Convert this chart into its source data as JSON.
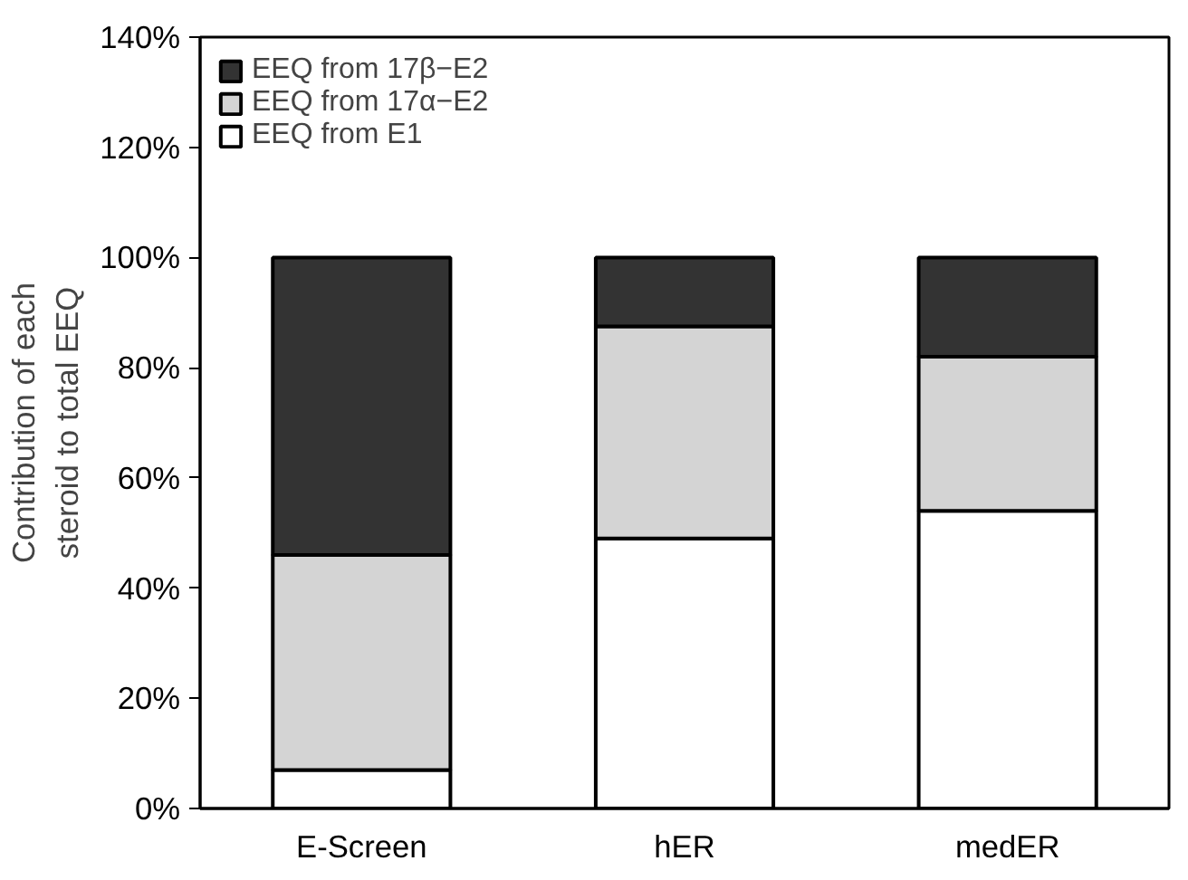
{
  "chart_data": {
    "type": "bar",
    "stacked": true,
    "ylabel": "Contribution of each\nsteroid to total EEQ",
    "categories": [
      "E-Screen",
      "hER",
      "medER"
    ],
    "series": [
      {
        "name": "EEQ from E1",
        "color": "#ffffff",
        "values": [
          7,
          49,
          54
        ]
      },
      {
        "name": "EEQ from 17α−E2",
        "color": "#d4d4d4",
        "values": [
          39,
          38.5,
          28
        ]
      },
      {
        "name": "EEQ from 17β−E2",
        "color": "#333333",
        "values": [
          54,
          12.5,
          18
        ]
      }
    ],
    "ylim": [
      0,
      140
    ],
    "yticks": [
      {
        "value": 0,
        "label": "0%"
      },
      {
        "value": 20,
        "label": "20%"
      },
      {
        "value": 40,
        "label": "40%"
      },
      {
        "value": 60,
        "label": "60%"
      },
      {
        "value": 80,
        "label": "80%"
      },
      {
        "value": 100,
        "label": "100%"
      },
      {
        "value": 120,
        "label": "120%"
      },
      {
        "value": 140,
        "label": "140%"
      }
    ],
    "grid": false,
    "legend": "top left"
  }
}
